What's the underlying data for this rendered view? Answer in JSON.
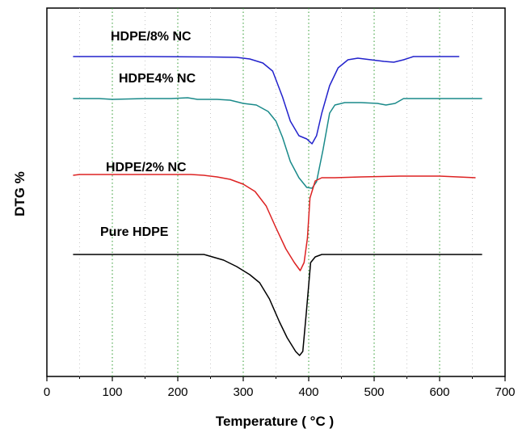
{
  "chart_data": {
    "type": "line",
    "title": "",
    "xlabel": "Temperature ( °C )",
    "ylabel": "DTG %",
    "xlim": [
      0,
      700
    ],
    "xticks": [
      0,
      100,
      200,
      300,
      400,
      500,
      600,
      700
    ],
    "y_tick_labels": "none",
    "grid": "vertical dotted at 100-degree steps, lighter minor dotted at 50-degree steps",
    "legend": "none (series labelled inline above each curve)",
    "series": [
      {
        "name": "HDPE/8% NC",
        "color": "#2222cc",
        "points": [
          [
            40,
            70
          ],
          [
            150,
            70
          ],
          [
            250,
            70.5
          ],
          [
            290,
            71
          ],
          [
            310,
            73
          ],
          [
            330,
            78
          ],
          [
            345,
            88
          ],
          [
            360,
            120
          ],
          [
            372,
            150
          ],
          [
            385,
            168
          ],
          [
            397,
            172
          ],
          [
            405,
            178
          ],
          [
            412,
            168
          ],
          [
            420,
            140
          ],
          [
            432,
            106
          ],
          [
            445,
            84
          ],
          [
            460,
            74
          ],
          [
            475,
            72
          ],
          [
            495,
            74
          ],
          [
            515,
            76
          ],
          [
            530,
            77
          ],
          [
            545,
            74
          ],
          [
            560,
            70
          ],
          [
            580,
            70
          ],
          [
            630,
            70
          ]
        ]
      },
      {
        "name": "HDPE4% NC",
        "color": "#1a8a8a",
        "points": [
          [
            40,
            122
          ],
          [
            80,
            122
          ],
          [
            100,
            123
          ],
          [
            150,
            122
          ],
          [
            190,
            122
          ],
          [
            215,
            121
          ],
          [
            230,
            123
          ],
          [
            260,
            123
          ],
          [
            280,
            124
          ],
          [
            300,
            128
          ],
          [
            320,
            130
          ],
          [
            338,
            138
          ],
          [
            350,
            150
          ],
          [
            360,
            170
          ],
          [
            372,
            200
          ],
          [
            385,
            220
          ],
          [
            397,
            232
          ],
          [
            405,
            233
          ],
          [
            412,
            225
          ],
          [
            422,
            185
          ],
          [
            432,
            140
          ],
          [
            440,
            130
          ],
          [
            455,
            127
          ],
          [
            480,
            127
          ],
          [
            505,
            128
          ],
          [
            518,
            130
          ],
          [
            532,
            128
          ],
          [
            545,
            122
          ],
          [
            560,
            122
          ],
          [
            665,
            122
          ]
        ]
      },
      {
        "name": "HDPE/2% NC",
        "color": "#dd2222",
        "points": [
          [
            40,
            217
          ],
          [
            50,
            216
          ],
          [
            100,
            216
          ],
          [
            150,
            216
          ],
          [
            200,
            216
          ],
          [
            220,
            216
          ],
          [
            240,
            217
          ],
          [
            260,
            219
          ],
          [
            280,
            222
          ],
          [
            300,
            228
          ],
          [
            318,
            237
          ],
          [
            335,
            255
          ],
          [
            350,
            282
          ],
          [
            365,
            308
          ],
          [
            378,
            325
          ],
          [
            387,
            335
          ],
          [
            393,
            325
          ],
          [
            398,
            295
          ],
          [
            402,
            245
          ],
          [
            410,
            224
          ],
          [
            420,
            220
          ],
          [
            440,
            220
          ],
          [
            480,
            219
          ],
          [
            540,
            218
          ],
          [
            600,
            218
          ],
          [
            655,
            220
          ]
        ]
      },
      {
        "name": "Pure HDPE",
        "color": "#000000",
        "points": [
          [
            40,
            315
          ],
          [
            100,
            315
          ],
          [
            150,
            315
          ],
          [
            200,
            315
          ],
          [
            240,
            315
          ],
          [
            270,
            322
          ],
          [
            290,
            330
          ],
          [
            310,
            340
          ],
          [
            325,
            350
          ],
          [
            340,
            370
          ],
          [
            355,
            398
          ],
          [
            367,
            418
          ],
          [
            380,
            435
          ],
          [
            386,
            440
          ],
          [
            391,
            435
          ],
          [
            396,
            390
          ],
          [
            403,
            325
          ],
          [
            410,
            318
          ],
          [
            420,
            315
          ],
          [
            460,
            315
          ],
          [
            520,
            315
          ],
          [
            665,
            315
          ]
        ]
      }
    ]
  }
}
